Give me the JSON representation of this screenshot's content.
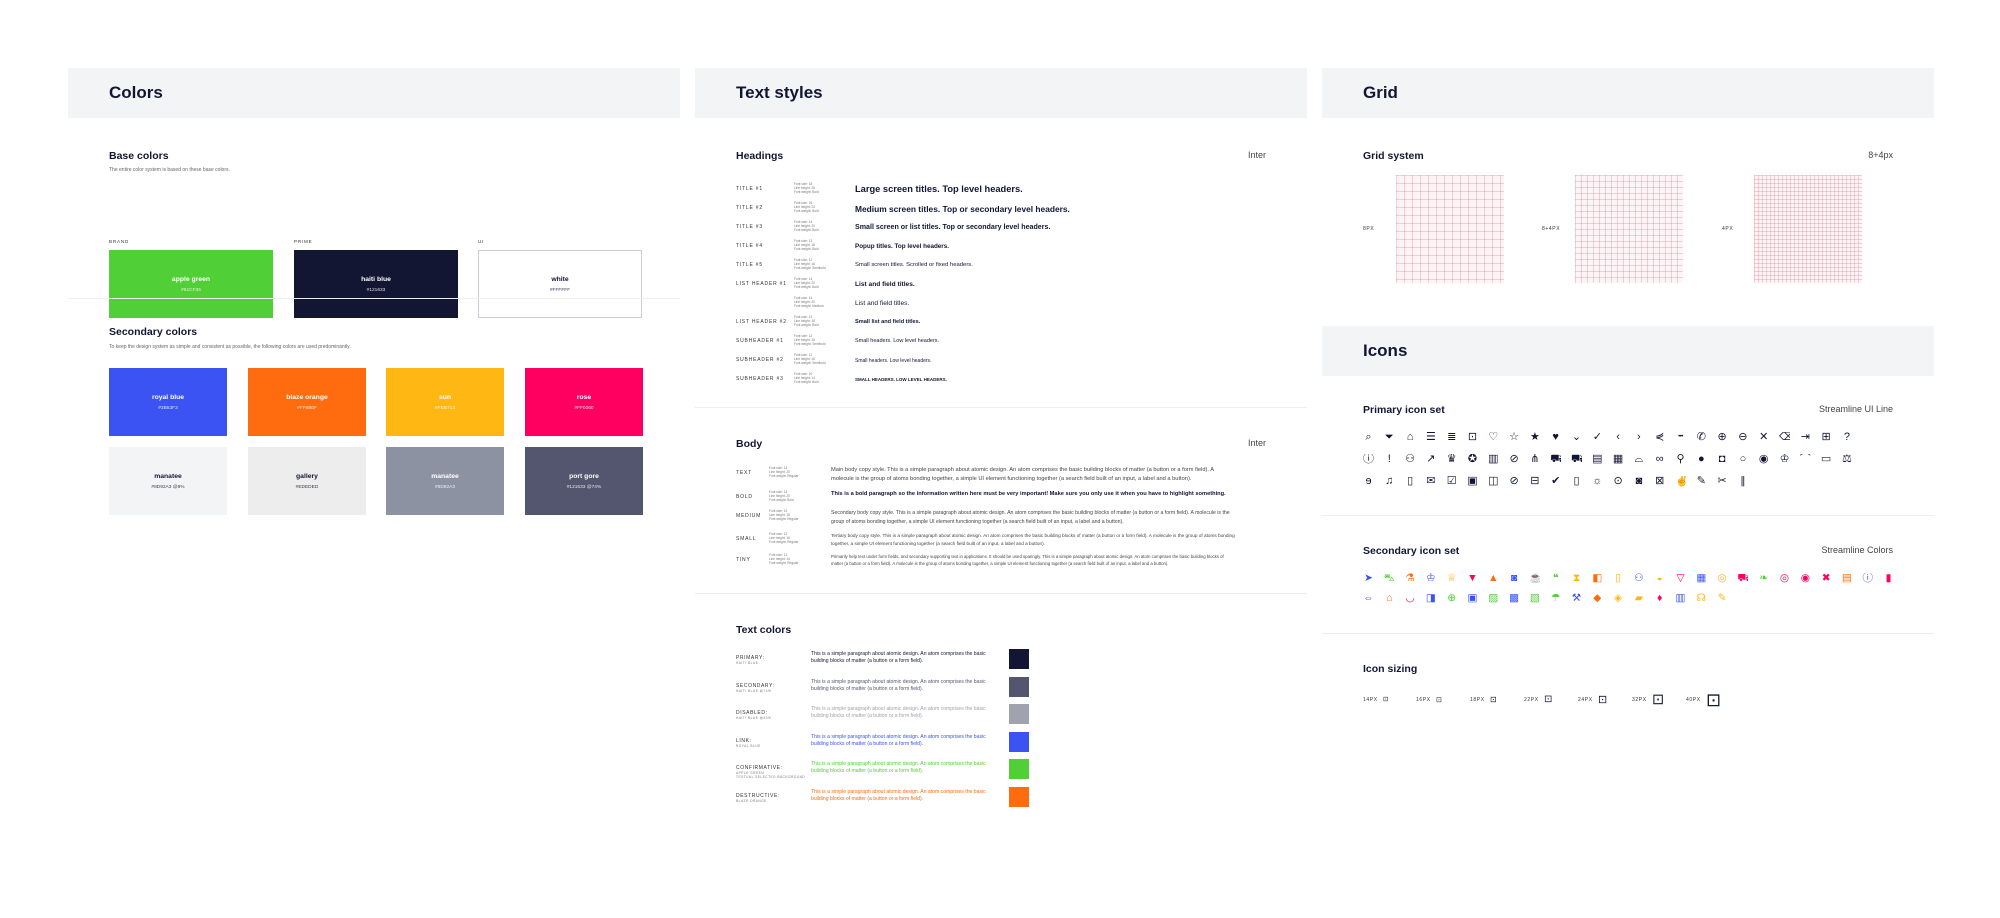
{
  "colors": {
    "title": "Colors",
    "base": {
      "title": "Base colors",
      "note": "The entire color system is based on these base colors.",
      "groups": [
        {
          "caption": "BRAND",
          "name": "apple green",
          "hex": "#51CF36",
          "fill": "#51cf36",
          "text": "#ffffff"
        },
        {
          "caption": "PRIME",
          "name": "haiti blue",
          "hex": "#121633",
          "fill": "#121633",
          "text": "#ffffff"
        },
        {
          "caption": "UI",
          "name": "white",
          "hex": "#FFFFFF",
          "fill": "#ffffff",
          "text": "#121633"
        }
      ]
    },
    "secondary": {
      "title": "Secondary colors",
      "note": "To keep the design system as simple and consistent as possible, the following colors are used predominantly.",
      "swatches": [
        {
          "name": "royal blue",
          "hex": "#3B53F3",
          "fill": "#3b53f3",
          "text": "#ffffff"
        },
        {
          "name": "blaze orange",
          "hex": "#FF6B0F",
          "fill": "#ff6b0f",
          "text": "#ffffff"
        },
        {
          "name": "sun",
          "hex": "#FEB713",
          "fill": "#feb713",
          "text": "#ffffff"
        },
        {
          "name": "rose",
          "hex": "#FF0060",
          "fill": "#ff0060",
          "text": "#ffffff"
        },
        {
          "name": "manatee",
          "hex": "#8D92A3 @8%",
          "fill": "#f3f4f6",
          "text": "#121633"
        },
        {
          "name": "gallery",
          "hex": "#EDEDED",
          "fill": "#ededed",
          "text": "#121633"
        },
        {
          "name": "manatee",
          "hex": "#8D92A3",
          "fill": "#8d92a3",
          "text": "#ffffff"
        },
        {
          "name": "port gore",
          "hex": "#121633 @74%",
          "fill": "#545670",
          "text": "#ffffff"
        }
      ]
    }
  },
  "text_styles": {
    "title": "Text styles",
    "headings": {
      "title": "Headings",
      "font": "Inter",
      "rows": [
        {
          "label": "TITLE #1",
          "meta": [
            "Font size: 18",
            "Line height: 26",
            "Font weight: Bold"
          ],
          "sample": "Large screen titles. Top level headers."
        },
        {
          "label": "TITLE #2",
          "meta": [
            "Font size: 16",
            "Line height: 24",
            "Font weight: Bold"
          ],
          "sample": "Medium screen titles. Top or secondary level headers."
        },
        {
          "label": "TITLE #3",
          "meta": [
            "Font size: 14",
            "Line height: 20",
            "Font weight: Bold"
          ],
          "sample": "Small screen or list titles. Top or secondary level headers."
        },
        {
          "label": "TITLE #4",
          "meta": [
            "Font size: 13",
            "Line height: 18",
            "Font weight: Bold"
          ],
          "sample": "Popup titles. Top level headers."
        },
        {
          "label": "TITLE #5",
          "meta": [
            "Font size: 12",
            "Line height: 16",
            "Font weight: Semibold"
          ],
          "sample": "Small screen titles. Scrolled or fixed headers."
        },
        {
          "label": "LIST HEADER #1",
          "meta": [
            "Font size: 14",
            "Line height: 20",
            "Font weight: Bold"
          ],
          "sample": "List and field titles."
        },
        {
          "label": "",
          "meta": [
            "Font size: 14",
            "Line height: 20",
            "Font weight: Medium"
          ],
          "sample": "List and field titles."
        },
        {
          "label": "LIST HEADER #2",
          "meta": [
            "Font size: 12",
            "Line height: 18",
            "Font weight: Bold"
          ],
          "sample": "Small list and field titles."
        },
        {
          "label": "SUBHEADER #1",
          "meta": [
            "Font size: 12",
            "Line height: 16",
            "Font weight: Semibold"
          ],
          "sample": "Small headers. Low level headers."
        },
        {
          "label": "SUBHEADER #2",
          "meta": [
            "Font size: 11",
            "Line height: 16",
            "Font weight: Semibold"
          ],
          "sample": "Small headers. Low level headers."
        },
        {
          "label": "SUBHEADER #3",
          "meta": [
            "Font size: 10",
            "Line height: 14",
            "Font weight: Bold"
          ],
          "sample": "SMALL HEADERS. LOW LEVEL HEADERS."
        }
      ]
    },
    "body": {
      "title": "Body",
      "font": "Inter",
      "rows": [
        {
          "label": "TEXT",
          "meta": [
            "Font size: 14",
            "Line height: 20",
            "Font weight: Regular"
          ],
          "sample": "Main body copy style. This is a simple paragraph about atomic design. An atom comprises the basic building blocks of matter (a button or a form field). A molecule is the group of atoms bonding together, a simple UI element functioning together (a search field built of an input, a label and a button)."
        },
        {
          "label": "BOLD",
          "meta": [
            "Font size: 14",
            "Line height: 20",
            "Font weight: Bold"
          ],
          "sample": "This is a bold paragraph so the information written here must be very important! Make sure you only use it when you have to highlight something."
        },
        {
          "label": "MEDIUM",
          "meta": [
            "Font size: 13",
            "Line height: 18",
            "Font weight: Regular"
          ],
          "sample": "Secondary body copy style. This is a simple paragraph about atomic design. An atom comprises the basic building blocks of matter (a button or a form field). A molecule is the group of atoms bonding together, a simple UI element functioning together (a search field built of an input, a label and a button)."
        },
        {
          "label": "SMALL",
          "meta": [
            "Font size: 12",
            "Line height: 16",
            "Font weight: Regular"
          ],
          "sample": "Tertiary body copy style. This is a simple paragraph about atomic design. An atom comprises the basic building blocks of matter (a button or a form field). A molecule is the group of atoms bonding together, a simple UI element functioning together (a search field built of an input, a label and a button)."
        },
        {
          "label": "TINY",
          "meta": [
            "Font size: 11",
            "Line height: 14",
            "Font weight: Regular"
          ],
          "sample": "Primarily help text under form fields, and secondary supporting text in applications. It should be used sparingly. This is a simple paragraph about atomic design. An atom comprises the basic building blocks of matter (a button or a form field). A molecule is the group of atoms bonding together, a simple UI element functioning together (a search field built of an input, a label and a button)."
        }
      ]
    },
    "text_colors": {
      "title": "Text colors",
      "rows": [
        {
          "label": "PRIMARY:",
          "sub": "HAITI BLUE",
          "text": "This is a simple paragraph about atomic design. An atom comprises the basic building blocks of matter (a button or a form field).",
          "color": "#121633",
          "swatch": "#121633"
        },
        {
          "label": "SECONDARY:",
          "sub": "HAITI BLUE @74%",
          "text": "This is a simple paragraph about atomic design. An atom comprises the basic building blocks of matter (a button or a form field).",
          "color": "#545670",
          "swatch": "#545670"
        },
        {
          "label": "DISABLED:",
          "sub": "HAITI BLUE @40%",
          "text": "This is a simple paragraph about atomic design. An atom comprises the basic building blocks of matter (a button or a form field).",
          "color": "#a0a2ad",
          "swatch": "#a0a2ad"
        },
        {
          "label": "LINK:",
          "sub": "ROYAL BLUE",
          "text": "This is a simple paragraph about atomic design. An atom comprises the basic building blocks of matter (a button or a form field).",
          "color": "#3b53f3",
          "swatch": "#3b53f3"
        },
        {
          "label": "CONFIRMATIVE:",
          "sub": "APPLE GREEN",
          "sub2": "TEXTUAL SELECTED BACKGROUND",
          "text": "This is a simple paragraph about atomic design. An atom comprises the basic building blocks of matter (a button or a form field).",
          "color": "#51cf36",
          "swatch": "#51cf36"
        },
        {
          "label": "DESTRUCTIVE:",
          "sub": "BLAZE ORANGE",
          "text": "This is a simple paragraph about atomic design. An atom comprises the basic building blocks of matter (a button or a form field).",
          "color": "#ff6b0f",
          "swatch": "#ff6b0f"
        }
      ]
    }
  },
  "grid": {
    "title": "Grid",
    "system": {
      "title": "Grid system",
      "value": "8+4px",
      "items": [
        {
          "label": "8PX"
        },
        {
          "label": "8+4PX"
        },
        {
          "label": "4PX"
        }
      ]
    }
  },
  "icons": {
    "title": "Icons",
    "primary": {
      "title": "Primary icon set",
      "source": "Streamline UI Line",
      "rows": [
        [
          "search-icon",
          "filter-icon",
          "home-icon",
          "menu-icon",
          "list-icon",
          "lock-icon",
          "heart-icon",
          "star-icon",
          "star-filled-icon",
          "heart-filled-icon",
          "chevron-down-icon",
          "check-icon",
          "chevron-left-icon",
          "chevron-right-icon",
          "share-icon",
          "more-icon",
          "phone-icon",
          "add-circle-icon",
          "remove-circle-icon",
          "close-icon",
          "trash-icon",
          "logout-icon",
          "briefcase-icon",
          "help-icon"
        ],
        [
          "info-icon",
          "alert-icon",
          "user-icon",
          "trend-icon",
          "crown-icon",
          "award-icon",
          "map-icon",
          "tag-icon",
          "cutlery-icon",
          "truck-icon",
          "truck-filled-icon",
          "bus-icon",
          "calendar-icon",
          "basket-icon",
          "link-icon",
          "pin-icon",
          "pin-filled-icon",
          "bag-icon",
          "circle-icon",
          "eye-icon",
          "chef-icon",
          "cloche-icon",
          "store-icon",
          "scale-icon"
        ],
        [
          "ear-icon",
          "bell-icon",
          "receipt-icon",
          "mail-icon",
          "check-list-icon",
          "clipboard-icon",
          "ticket-icon",
          "eye-hidden-icon",
          "lock-open-icon",
          "clipboard-check-icon",
          "book-icon",
          "bulb-icon",
          "camera-icon",
          "camera-filled-icon",
          "image-icon",
          "fingers-icon",
          "pencil-icon",
          "scissors-icon",
          "pause-icon"
        ]
      ],
      "glyphs": {
        "search-icon": "⌕",
        "filter-icon": "⏷",
        "home-icon": "⌂",
        "menu-icon": "☰",
        "list-icon": "≣",
        "lock-icon": "⊡",
        "heart-icon": "♡",
        "star-icon": "☆",
        "star-filled-icon": "★",
        "heart-filled-icon": "♥",
        "chevron-down-icon": "⌄",
        "check-icon": "✓",
        "chevron-left-icon": "‹",
        "chevron-right-icon": "›",
        "share-icon": "⋞",
        "more-icon": "•••",
        "phone-icon": "✆",
        "add-circle-icon": "⊕",
        "remove-circle-icon": "⊖",
        "close-icon": "✕",
        "trash-icon": "⌫",
        "logout-icon": "⇥",
        "briefcase-icon": "⊞",
        "help-icon": "?",
        "info-icon": "ⓘ",
        "alert-icon": "!",
        "user-icon": "⚇",
        "trend-icon": "↗",
        "crown-icon": "♛",
        "award-icon": "✪",
        "map-icon": "▥",
        "tag-icon": "⊘",
        "cutlery-icon": "⋔",
        "truck-icon": "⛟",
        "truck-filled-icon": "⛟",
        "bus-icon": "▤",
        "calendar-icon": "▦",
        "basket-icon": "⌓",
        "link-icon": "∞",
        "pin-icon": "⚲",
        "pin-filled-icon": "●",
        "bag-icon": "◘",
        "circle-icon": "○",
        "eye-icon": "◉",
        "chef-icon": "♔",
        "cloche-icon": "⌒",
        "store-icon": "▭",
        "scale-icon": "⚖",
        "ear-icon": "ɘ",
        "bell-icon": "♫",
        "receipt-icon": "▯",
        "mail-icon": "✉",
        "check-list-icon": "☑",
        "clipboard-icon": "▣",
        "ticket-icon": "◫",
        "eye-hidden-icon": "⊘",
        "lock-open-icon": "⊟",
        "clipboard-check-icon": "✔",
        "book-icon": "▯",
        "bulb-icon": "☼",
        "camera-icon": "⊙",
        "camera-filled-icon": "◙",
        "image-icon": "⊠",
        "fingers-icon": "✌",
        "pencil-icon": "✎",
        "scissors-icon": "✂",
        "pause-icon": "∥"
      }
    },
    "secondary": {
      "title": "Secondary icon set",
      "source": "Streamline Colors",
      "rows": [
        [
          {
            "name": "send-color-icon",
            "color": "#3b53f3",
            "glyph": "➤"
          },
          {
            "name": "car-color-icon",
            "color": "#51cf36",
            "glyph": "⛍"
          },
          {
            "name": "flask-color-icon",
            "color": "#ff6b0f",
            "glyph": "⚗"
          },
          {
            "name": "chef-color-icon",
            "color": "#3b53f3",
            "glyph": "♔"
          },
          {
            "name": "trophy-color-icon",
            "color": "#feb713",
            "glyph": "♕"
          },
          {
            "name": "bucket-color-icon",
            "color": "#ff0060",
            "glyph": "▼"
          },
          {
            "name": "cake-color-icon",
            "color": "#ff6b0f",
            "glyph": "▲"
          },
          {
            "name": "camera-color-icon",
            "color": "#3b53f3",
            "glyph": "◙"
          },
          {
            "name": "coffee-color-icon",
            "color": "#feb713",
            "glyph": "☕"
          },
          {
            "name": "chat-color-icon",
            "color": "#51cf36",
            "glyph": "❝"
          },
          {
            "name": "hourglass-color-icon",
            "color": "#feb713",
            "glyph": "⧗"
          },
          {
            "name": "barrel-color-icon",
            "color": "#ff6b0f",
            "glyph": "◧"
          },
          {
            "name": "fridge-color-icon",
            "color": "#feb713",
            "glyph": "▯"
          },
          {
            "name": "people-color-icon",
            "color": "#3b53f3",
            "glyph": "⚇"
          },
          {
            "name": "bread-color-icon",
            "color": "#feb713",
            "glyph": "◒"
          },
          {
            "name": "glass-color-icon",
            "color": "#ff0060",
            "glyph": "▽"
          },
          {
            "name": "calendar-color-icon",
            "color": "#3b53f3",
            "glyph": "▦"
          },
          {
            "name": "coin-color-icon",
            "color": "#feb713",
            "glyph": "◎"
          },
          {
            "name": "truck-color-icon",
            "color": "#ff0060",
            "glyph": "⛟"
          },
          {
            "name": "pepper-color-icon",
            "color": "#51cf36",
            "glyph": "❧"
          },
          {
            "name": "target-color-icon",
            "color": "#ff0060",
            "glyph": "◎"
          },
          {
            "name": "target2-color-icon",
            "color": "#ff0060",
            "glyph": "◉"
          },
          {
            "name": "close-color-icon",
            "color": "#ff0060",
            "glyph": "✖"
          },
          {
            "name": "calendar2-color-icon",
            "color": "#ff6b0f",
            "glyph": "▤"
          },
          {
            "name": "info-color-icon",
            "color": "#3b53f3",
            "glyph": "ⓘ"
          },
          {
            "name": "book-color-icon",
            "color": "#ff0060",
            "glyph": "▮"
          }
        ],
        [
          {
            "name": "transfer-color-icon",
            "color": "#3b53f3",
            "glyph": "⇔"
          },
          {
            "name": "store-color-icon",
            "color": "#ff6b0f",
            "glyph": "⌂"
          },
          {
            "name": "mortar-color-icon",
            "color": "#ff0060",
            "glyph": "◡"
          },
          {
            "name": "drink-color-icon",
            "color": "#3b53f3",
            "glyph": "◨"
          },
          {
            "name": "add-color-icon",
            "color": "#51cf36",
            "glyph": "⊕"
          },
          {
            "name": "photo-color-icon",
            "color": "#3b53f3",
            "glyph": "▣"
          },
          {
            "name": "picture-color-icon",
            "color": "#51cf36",
            "glyph": "▨"
          },
          {
            "name": "gallery-color-icon",
            "color": "#3b53f3",
            "glyph": "▩"
          },
          {
            "name": "gallery2-color-icon",
            "color": "#51cf36",
            "glyph": "▧"
          },
          {
            "name": "hair-dryer-color-icon",
            "color": "#51cf36",
            "glyph": "☂"
          },
          {
            "name": "hammer-color-icon",
            "color": "#3b53f3",
            "glyph": "⚒"
          },
          {
            "name": "tag-color-icon",
            "color": "#ff6b0f",
            "glyph": "◆"
          },
          {
            "name": "label-color-icon",
            "color": "#feb713",
            "glyph": "◈"
          },
          {
            "name": "ticket-color-icon",
            "color": "#feb713",
            "glyph": "▰"
          },
          {
            "name": "cone-color-icon",
            "color": "#ff0060",
            "glyph": "♦"
          },
          {
            "name": "building-color-icon",
            "color": "#3b53f3",
            "glyph": "▥"
          },
          {
            "name": "headset-color-icon",
            "color": "#feb713",
            "glyph": "☊"
          },
          {
            "name": "pencil-color-icon",
            "color": "#feb713",
            "glyph": "✎"
          }
        ]
      ]
    },
    "sizing": {
      "title": "Icon sizing",
      "items": [
        {
          "label": "14PX",
          "size": 14
        },
        {
          "label": "16PX",
          "size": 16
        },
        {
          "label": "18PX",
          "size": 18
        },
        {
          "label": "22PX",
          "size": 22
        },
        {
          "label": "24PX",
          "size": 24
        },
        {
          "label": "32PX",
          "size": 32
        },
        {
          "label": "40PX",
          "size": 40
        }
      ]
    }
  }
}
